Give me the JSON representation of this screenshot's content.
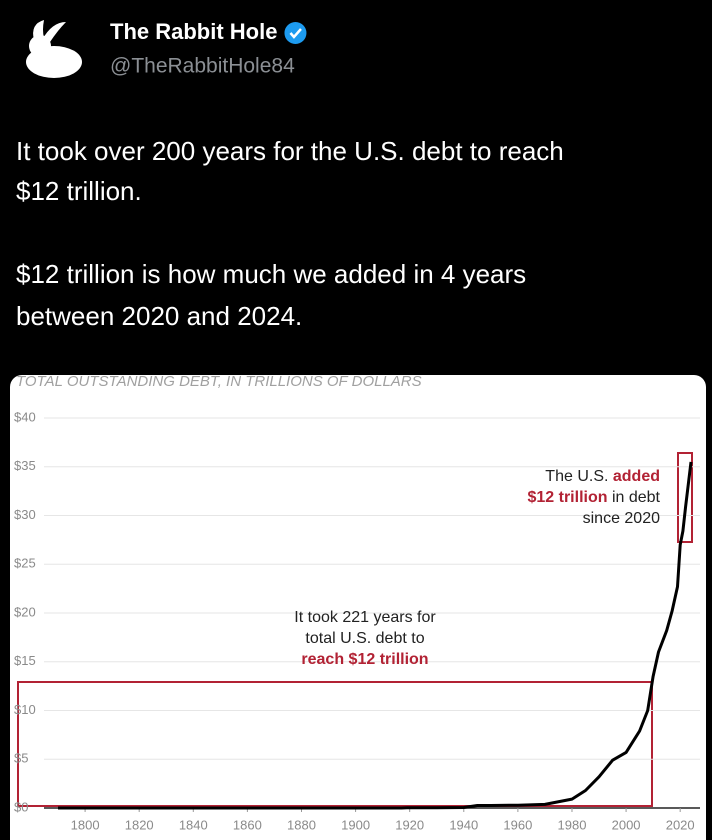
{
  "post": {
    "author_name": "The Rabbit Hole",
    "handle": "@TheRabbitHole84",
    "text_lines": [
      "It took over 200 years for the U.S. debt to reach",
      "$12 trillion.",
      "$12 trillion is how much we added in 4 years",
      "between 2020 and 2024."
    ]
  },
  "chart_data": {
    "type": "line",
    "title": "TOTAL OUTSTANDING DEBT, IN TRILLIONS OF DOLLARS",
    "x": [
      1790,
      1800,
      1820,
      1840,
      1860,
      1866,
      1880,
      1900,
      1917,
      1919,
      1930,
      1940,
      1945,
      1950,
      1960,
      1970,
      1980,
      1985,
      1990,
      1995,
      2000,
      2005,
      2008,
      2010,
      2012,
      2015,
      2017,
      2019,
      2020,
      2021,
      2022,
      2023,
      2024
    ],
    "series": [
      {
        "name": "Total outstanding debt",
        "color": "#000000",
        "values": [
          0.0001,
          0.0001,
          0.0001,
          1e-05,
          0.0001,
          0.003,
          0.002,
          0.002,
          0.003,
          0.025,
          0.016,
          0.05,
          0.26,
          0.26,
          0.29,
          0.37,
          0.91,
          1.8,
          3.2,
          4.9,
          5.7,
          7.9,
          10,
          13.5,
          16,
          18.2,
          20.2,
          22.7,
          27,
          28.4,
          30.9,
          33.2,
          35.5
        ]
      }
    ],
    "xlim": [
      1780,
      2024
    ],
    "xticks": [
      1800,
      1820,
      1840,
      1860,
      1880,
      1900,
      1920,
      1940,
      1960,
      1980,
      2000,
      2020
    ],
    "ylim": [
      0,
      40
    ],
    "yticks": [
      {
        "value": 0,
        "label": "$0"
      },
      {
        "value": 5,
        "label": "$5"
      },
      {
        "value": 10,
        "label": "$10"
      },
      {
        "value": 15,
        "label": "$15"
      },
      {
        "value": 20,
        "label": "$20"
      },
      {
        "value": 25,
        "label": "$25"
      },
      {
        "value": 30,
        "label": "$30"
      },
      {
        "value": 35,
        "label": "$35"
      },
      {
        "value": 40,
        "label": "$40"
      }
    ],
    "grid": true,
    "annotations": [
      {
        "lines": [
          [
            {
              "text": "It took 221 years for",
              "highlight": false
            }
          ],
          [
            {
              "text": "total U.S. debt to",
              "highlight": false
            }
          ],
          [
            {
              "text": "reach $12 trillion",
              "highlight": true
            }
          ]
        ]
      },
      {
        "lines": [
          [
            {
              "text": "The U.S. ",
              "highlight": false
            },
            {
              "text": "added",
              "highlight": true
            }
          ],
          [
            {
              "text": "$12 trillion",
              "highlight": true
            },
            {
              "text": " in debt",
              "highlight": false
            }
          ],
          [
            {
              "text": "since 2020",
              "highlight": false
            }
          ]
        ]
      }
    ]
  }
}
